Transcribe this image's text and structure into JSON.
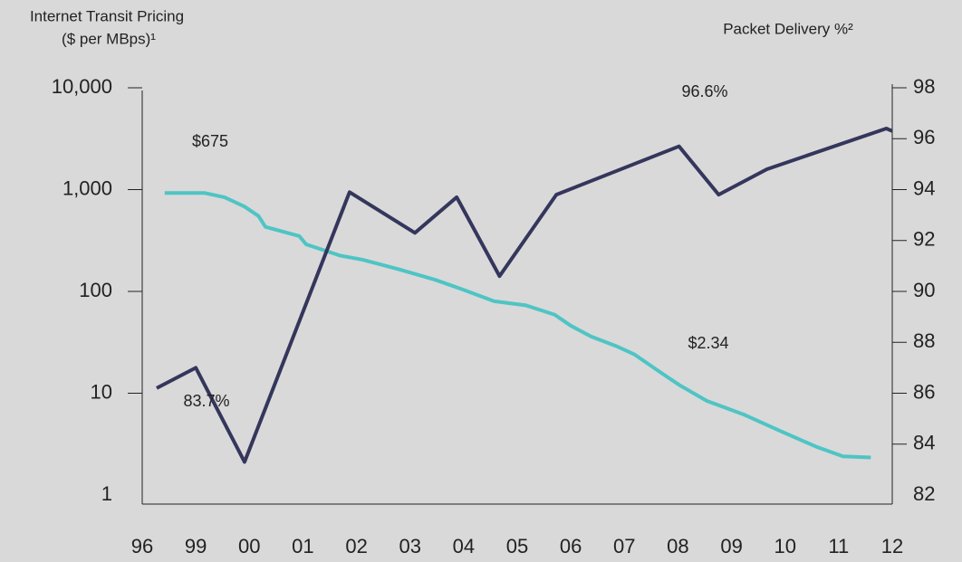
{
  "chart_data": {
    "type": "line",
    "ylabel": [
      "Internet Transit Pricing",
      "($ per MBps)¹"
    ],
    "y2label": "Packet Delivery %²",
    "xlim": [
      0,
      14
    ],
    "xticks": [
      {
        "value": 0,
        "label": "96"
      },
      {
        "value": 1,
        "label": "99"
      },
      {
        "value": 2,
        "label": "00"
      },
      {
        "value": 3,
        "label": "01"
      },
      {
        "value": 4,
        "label": "02"
      },
      {
        "value": 5,
        "label": "03"
      },
      {
        "value": 6,
        "label": "04"
      },
      {
        "value": 7,
        "label": "05"
      },
      {
        "value": 8,
        "label": "06"
      },
      {
        "value": 9,
        "label": "07"
      },
      {
        "value": 10,
        "label": "08"
      },
      {
        "value": 11,
        "label": "09"
      },
      {
        "value": 12,
        "label": "10"
      },
      {
        "value": 13,
        "label": "11"
      },
      {
        "value": 14,
        "label": "12"
      }
    ],
    "ylim": [
      1,
      10000
    ],
    "yscale": "log",
    "yticks": [
      {
        "value": 10000,
        "label": "10,000"
      },
      {
        "value": 1000,
        "label": "1,000"
      },
      100,
      10,
      1
    ],
    "y2lim": [
      82,
      98
    ],
    "y2ticks": [
      98,
      96,
      94,
      92,
      90,
      88,
      86,
      84,
      82
    ],
    "series": [
      {
        "name": "Internet Transit Pricing",
        "color": "#4fc4c4",
        "axis": "y",
        "x": [
          0.42,
          1.17,
          1.54,
          1.91,
          2.17,
          2.3,
          2.93,
          3.06,
          3.69,
          4.11,
          4.79,
          5.47,
          5.97,
          6.57,
          7.16,
          7.7,
          8.0,
          8.38,
          8.85,
          9.19,
          9.7,
          10.03,
          10.54,
          11.22,
          11.89,
          12.57,
          13.08,
          13.6
        ],
        "values": [
          925,
          925,
          840,
          680,
          550,
          430,
          350,
          290,
          225,
          205,
          165,
          130,
          105,
          80,
          73,
          59,
          46,
          36,
          29,
          24,
          15.7,
          12,
          8.4,
          6.2,
          4.3,
          3.0,
          2.4,
          2.34
        ]
      },
      {
        "name": "Packet Delivery %",
        "color": "#35365c",
        "axis": "y2",
        "x": [
          0.27,
          1.0,
          1.91,
          3.87,
          5.09,
          5.87,
          6.67,
          7.73,
          10.02,
          10.76,
          11.66,
          13.89,
          14.0
        ],
        "values": [
          86.2,
          87.0,
          83.3,
          93.9,
          92.3,
          93.7,
          90.6,
          93.8,
          95.7,
          93.8,
          94.8,
          96.4,
          96.3
        ]
      }
    ],
    "annotations": [
      "$675",
      "96.6%",
      "$2.34",
      "83.7%"
    ]
  }
}
